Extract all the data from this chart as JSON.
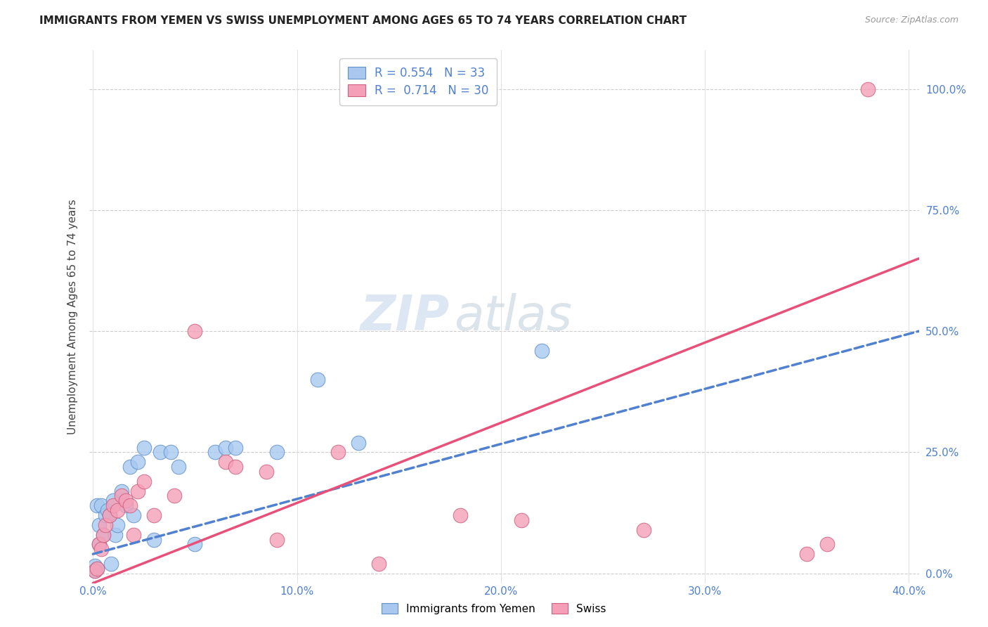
{
  "title": "IMMIGRANTS FROM YEMEN VS SWISS UNEMPLOYMENT AMONG AGES 65 TO 74 YEARS CORRELATION CHART",
  "source": "Source: ZipAtlas.com",
  "ylabel": "Unemployment Among Ages 65 to 74 years",
  "xlabel_vals": [
    0.0,
    0.1,
    0.2,
    0.3,
    0.4
  ],
  "ylabel_vals": [
    0.0,
    0.25,
    0.5,
    0.75,
    1.0
  ],
  "ylabel_ticks": [
    "0.0%",
    "25.0%",
    "50.0%",
    "75.0%",
    "100.0%"
  ],
  "xlim": [
    -0.002,
    0.405
  ],
  "ylim": [
    -0.02,
    1.08
  ],
  "blue_color": "#A8C8F0",
  "pink_color": "#F5A0B8",
  "blue_line_color": "#5080D0",
  "pink_line_color": "#E8507A",
  "blue_R": 0.554,
  "blue_N": 33,
  "pink_R": 0.714,
  "pink_N": 30,
  "watermark_zip": "ZIP",
  "watermark_atlas": "atlas",
  "blue_points_x": [
    0.001,
    0.001,
    0.002,
    0.002,
    0.003,
    0.003,
    0.004,
    0.005,
    0.006,
    0.007,
    0.008,
    0.009,
    0.01,
    0.011,
    0.012,
    0.014,
    0.016,
    0.018,
    0.02,
    0.022,
    0.025,
    0.03,
    0.033,
    0.038,
    0.042,
    0.05,
    0.06,
    0.065,
    0.07,
    0.09,
    0.11,
    0.13,
    0.22
  ],
  "blue_points_y": [
    0.005,
    0.015,
    0.01,
    0.14,
    0.06,
    0.1,
    0.14,
    0.08,
    0.12,
    0.13,
    0.12,
    0.02,
    0.15,
    0.08,
    0.1,
    0.17,
    0.14,
    0.22,
    0.12,
    0.23,
    0.26,
    0.07,
    0.25,
    0.25,
    0.22,
    0.06,
    0.25,
    0.26,
    0.26,
    0.25,
    0.4,
    0.27,
    0.46
  ],
  "pink_points_x": [
    0.001,
    0.002,
    0.003,
    0.004,
    0.005,
    0.006,
    0.008,
    0.01,
    0.012,
    0.014,
    0.016,
    0.018,
    0.02,
    0.022,
    0.025,
    0.03,
    0.04,
    0.05,
    0.065,
    0.07,
    0.085,
    0.09,
    0.12,
    0.14,
    0.18,
    0.21,
    0.27,
    0.35,
    0.36,
    0.38
  ],
  "pink_points_y": [
    0.005,
    0.01,
    0.06,
    0.05,
    0.08,
    0.1,
    0.12,
    0.14,
    0.13,
    0.16,
    0.15,
    0.14,
    0.08,
    0.17,
    0.19,
    0.12,
    0.16,
    0.5,
    0.23,
    0.22,
    0.21,
    0.07,
    0.25,
    0.02,
    0.12,
    0.11,
    0.09,
    0.04,
    0.06,
    1.0
  ],
  "blue_line_x0": 0.0,
  "blue_line_x1": 0.405,
  "blue_line_y0": 0.04,
  "blue_line_y1": 0.5,
  "pink_line_x0": 0.0,
  "pink_line_x1": 0.405,
  "pink_line_y0": -0.02,
  "pink_line_y1": 0.65
}
